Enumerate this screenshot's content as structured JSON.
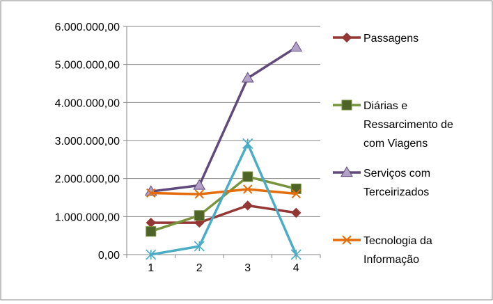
{
  "chart_data": {
    "type": "line",
    "x": [
      "1",
      "2",
      "3",
      "4"
    ],
    "y_ticks": [
      "0,00",
      "1.000.000,00",
      "2.000.000,00",
      "3.000.000,00",
      "4.000.000,00",
      "5.000.000,00",
      "6.000.000,00"
    ],
    "ylim": [
      0,
      6000000
    ],
    "grid": true,
    "legend_position": "right",
    "series": [
      {
        "name_lines": [
          "Passagens"
        ],
        "values": [
          840000,
          840000,
          1290000,
          1100000
        ],
        "color": "#943634",
        "line_color": "#943634",
        "marker": "diamond"
      },
      {
        "name_lines": [
          "Diárias e",
          "Ressarcimento de",
          "com Viagens"
        ],
        "values": [
          610000,
          1030000,
          2050000,
          1730000
        ],
        "color": "#4f6228",
        "line_color": "#77933c",
        "marker": "square"
      },
      {
        "name_lines": [
          "Serviços com",
          "Terceirizados"
        ],
        "values": [
          1660000,
          1820000,
          4640000,
          5450000
        ],
        "color": "#8064a2",
        "line_color": "#604a7b",
        "marker": "triangle"
      },
      {
        "name_lines": [
          "Tecnologia da",
          "Informação"
        ],
        "values": [
          1620000,
          1590000,
          1720000,
          1600000
        ],
        "color": "#e46c0a",
        "line_color": "#e46c0a",
        "marker": "x"
      },
      {
        "name_lines": [],
        "values": [
          0,
          220000,
          2920000,
          0
        ],
        "color": "#4bacc6",
        "line_color": "#4bacc6",
        "marker": "star"
      }
    ]
  }
}
